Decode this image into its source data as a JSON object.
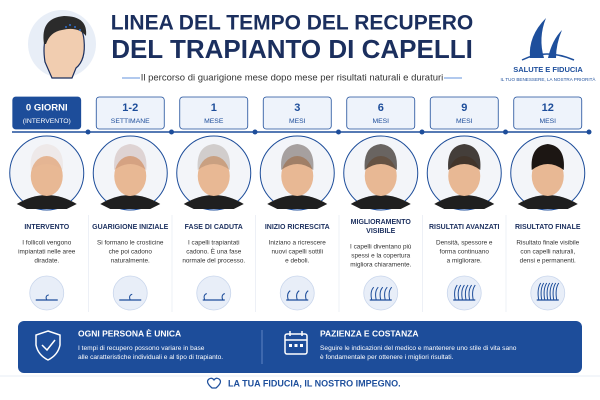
{
  "header": {
    "title_line1": "LINEA DEL TEMPO DEL RECUPERO",
    "title_line2": "DEL TRAPIANTO DI CAPELLI",
    "subtitle": "Il percorso di guarigione mese dopo mese per risultati naturali e duraturi"
  },
  "logo": {
    "name": "SALUTE E FIDUCIA",
    "tagline": "IL TUO BENESSERE, LA NOSTRA PRIORITÀ"
  },
  "stages": [
    {
      "time": "0 GIORNI",
      "unit": "(INTERVENTO)",
      "title": [
        "INTERVENTO"
      ],
      "desc": [
        "I follicoli vengono",
        "impiantati nelle aree",
        "diradate."
      ]
    },
    {
      "time": "1-2",
      "unit": "SETTIMANE",
      "title": [
        "GUARIGIONE INIZIALE"
      ],
      "desc": [
        "Si formano le crosticine",
        "che poi cadono",
        "naturalmente."
      ]
    },
    {
      "time": "1",
      "unit": "MESE",
      "title": [
        "FASE DI CADUTA"
      ],
      "desc": [
        "I capelli trapiantati",
        "cadono. È una fase",
        "normale del processo."
      ]
    },
    {
      "time": "3",
      "unit": "MESI",
      "title": [
        "INIZIO RICRESCITA"
      ],
      "desc": [
        "Iniziano a ricrescere",
        "nuovi capelli sottili",
        "e deboli."
      ]
    },
    {
      "time": "6",
      "unit": "MESI",
      "title": [
        "MIGLIORAMENTO",
        "VISIBILE"
      ],
      "desc": [
        "I capelli diventano più",
        "spessi e la copertura",
        "migliora chiaramente."
      ]
    },
    {
      "time": "9",
      "unit": "MESI",
      "title": [
        "RISULTATI AVANZATI"
      ],
      "desc": [
        "Densità, spessore e",
        "forma continuano",
        "a migliorare."
      ]
    },
    {
      "time": "12",
      "unit": "MESI",
      "title": [
        "RISULTATO FINALE"
      ],
      "desc": [
        "Risultato finale visibile",
        "con capelli naturali,",
        "densi e permanenti."
      ]
    }
  ],
  "notes": [
    {
      "title": "OGNI PERSONA È UNICA",
      "desc": [
        "I tempi di recupero possono variare in base",
        "alle caratteristiche individuali e al tipo di trapianto."
      ]
    },
    {
      "title": "PAZIENZA E COSTANZA",
      "desc": [
        "Seguire le indicazioni del medico e mantenere uno stile di vita sano",
        "è fondamentale per ottenere i migliori risultati."
      ]
    }
  ],
  "footer": "LA TUA FIDUCIA, IL NOSTRO IMPEGNO."
}
